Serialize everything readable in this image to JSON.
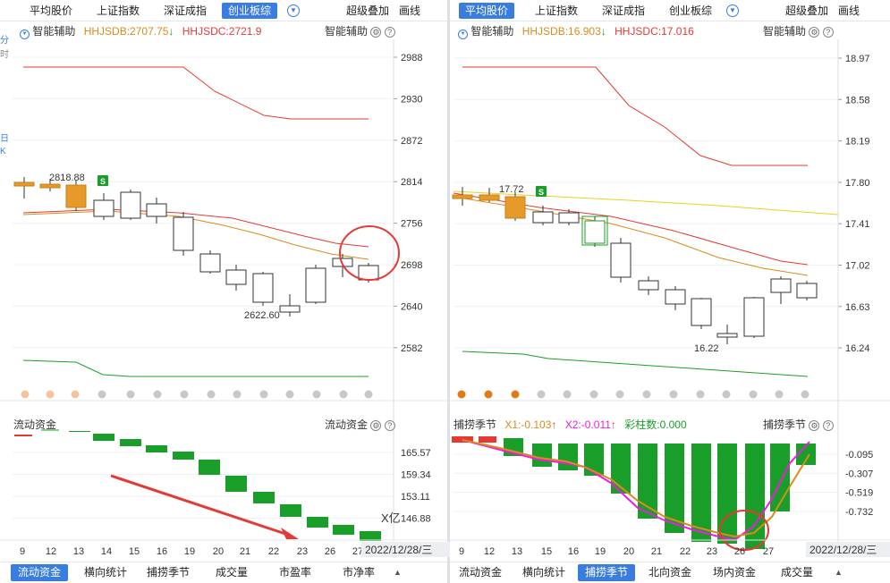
{
  "left": {
    "tabs": [
      "平均股价",
      "上证指数",
      "深证成指",
      "创业板综"
    ],
    "active_tab": 3,
    "right_tabs": [
      "超级叠加",
      "画线"
    ],
    "indicator": {
      "name": "智能辅助",
      "db_label": "HHJSDB:2707.75",
      "dc_label": "HHJSDC:2721.9",
      "right_label": "智能辅助"
    },
    "y_ticks": [
      "2988",
      "2930",
      "2872",
      "2814",
      "2756",
      "2698",
      "2640",
      "2582"
    ],
    "annotations": {
      "high": "2818.88",
      "low": "2622.60",
      "signal": "S"
    },
    "sub": {
      "name": "流动资金",
      "right_label": "流动资金",
      "y_ticks": [
        "165.57",
        "159.34",
        "153.11",
        "146.88"
      ],
      "unit": "X亿"
    },
    "x_ticks": [
      "9",
      "12",
      "13",
      "14",
      "15",
      "16",
      "19",
      "20",
      "21",
      "22",
      "23",
      "26",
      "27"
    ],
    "date": "2022/12/28/三",
    "bottom_tabs": [
      "流动资金",
      "横向统计",
      "捕捞季节",
      "成交量",
      "市盈率",
      "市净率"
    ],
    "active_bottom": 0,
    "edge_chars": [
      "分",
      "时",
      "日",
      "K"
    ]
  },
  "right": {
    "tabs": [
      "平均股价",
      "上证指数",
      "深证成指",
      "创业板综"
    ],
    "active_tab": 0,
    "right_tabs": [
      "超级叠加",
      "画线"
    ],
    "indicator": {
      "name": "智能辅助",
      "db_label": "HHJSDB:16.903",
      "dc_label": "HHJSDC:17.016",
      "right_label": "智能辅助"
    },
    "y_ticks": [
      "18.97",
      "18.58",
      "18.19",
      "17.80",
      "17.41",
      "17.02",
      "16.63",
      "16.24"
    ],
    "annotations": {
      "high": "17.72",
      "low": "16.22",
      "signal": "S"
    },
    "sub": {
      "name": "捕捞季节",
      "x1": "X1:-0.103",
      "x2": "X2:-0.011",
      "bars": "彩柱数:0.000",
      "right_label": "捕捞季节",
      "y_ticks": [
        "-0.095",
        "-0.307",
        "-0.519",
        "-0.732"
      ]
    },
    "x_ticks": [
      "9",
      "12",
      "13",
      "15",
      "16",
      "19",
      "20",
      "21",
      "22",
      "23",
      "26",
      "27"
    ],
    "date": "2022/12/28/三",
    "bottom_tabs": [
      "流动资金",
      "横向统计",
      "捕捞季节",
      "北向资金",
      "场内资金",
      "成交量"
    ],
    "active_bottom": 2
  },
  "colors": {
    "up": "#e02020",
    "down": "#1a9e2a",
    "accent": "#3a7de0",
    "db": "#d98c1a",
    "dc": "#e53935",
    "pink": "#f01ae0",
    "yellow": "#e8d020"
  },
  "icons": {
    "down_arrow": "↓",
    "up_arrow": "↑",
    "dropdown": "▼",
    "info": "?",
    "gear": "⚙",
    "collapse": "▲"
  }
}
